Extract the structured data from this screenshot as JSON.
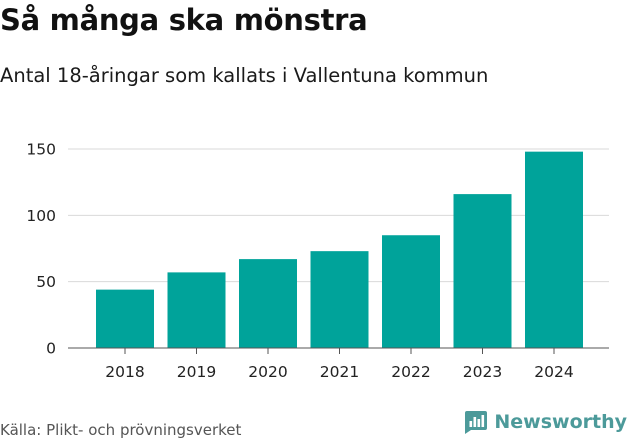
{
  "chart_data": {
    "type": "bar",
    "title": "Så många ska mönstra",
    "subtitle": "Antal 18-åringar som kallats i Vallentuna kommun",
    "categories": [
      "2018",
      "2019",
      "2020",
      "2021",
      "2022",
      "2023",
      "2024"
    ],
    "values": [
      44,
      57,
      67,
      73,
      85,
      116,
      148
    ],
    "xlabel": "",
    "ylabel": "",
    "ylim": [
      0,
      150
    ],
    "yticks": [
      0,
      50,
      100,
      150
    ],
    "grid": true,
    "bar_color": "#00a39a",
    "gridline_color": "#d9d9d9"
  },
  "source": "Källa: Plikt- och prövningsverket",
  "brand": {
    "name": "Newsworthy",
    "logo_icon": "newsworthy-chart-bubble-icon",
    "color": "#4c9a9a"
  }
}
